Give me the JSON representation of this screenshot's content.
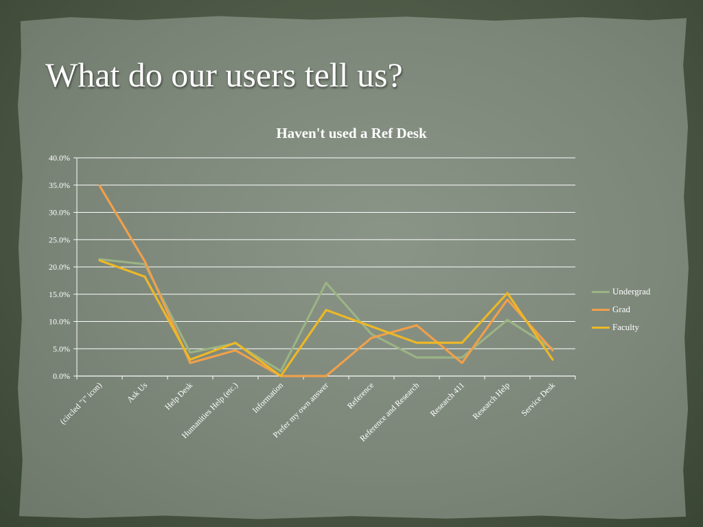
{
  "slide": {
    "title": "What do our users tell us?"
  },
  "chart_data": {
    "type": "line",
    "title": "Haven't used a Ref Desk",
    "xlabel": "",
    "ylabel": "",
    "categories": [
      "(circled \"i\" icon)",
      "Ask Us",
      "Help Desk",
      "Humanities Help (etc.)",
      "Information",
      "Prefer my own answer",
      "Reference",
      "Reference and Research",
      "Research 411",
      "Research Help",
      "Service Desk"
    ],
    "series": [
      {
        "name": "Undergrad",
        "color": "#9bb385",
        "values": [
          21.4,
          20.5,
          4.3,
          6.0,
          0.9,
          17.1,
          7.7,
          3.4,
          3.4,
          10.3,
          5.0
        ]
      },
      {
        "name": "Grad",
        "color": "#f0a04b",
        "values": [
          34.9,
          21.0,
          2.4,
          4.7,
          0.0,
          0.0,
          7.0,
          9.3,
          2.4,
          14.0,
          4.7
        ]
      },
      {
        "name": "Faculty",
        "color": "#ecb827",
        "values": [
          21.2,
          18.2,
          3.0,
          6.1,
          0.0,
          12.1,
          9.1,
          6.1,
          6.1,
          15.2,
          3.0
        ]
      }
    ],
    "ylim": [
      0,
      40
    ],
    "yticks": [
      "0.0%",
      "5.0%",
      "10.0%",
      "15.0%",
      "20.0%",
      "25.0%",
      "30.0%",
      "35.0%",
      "40.0%"
    ],
    "grid": true,
    "legend_position": "right"
  }
}
